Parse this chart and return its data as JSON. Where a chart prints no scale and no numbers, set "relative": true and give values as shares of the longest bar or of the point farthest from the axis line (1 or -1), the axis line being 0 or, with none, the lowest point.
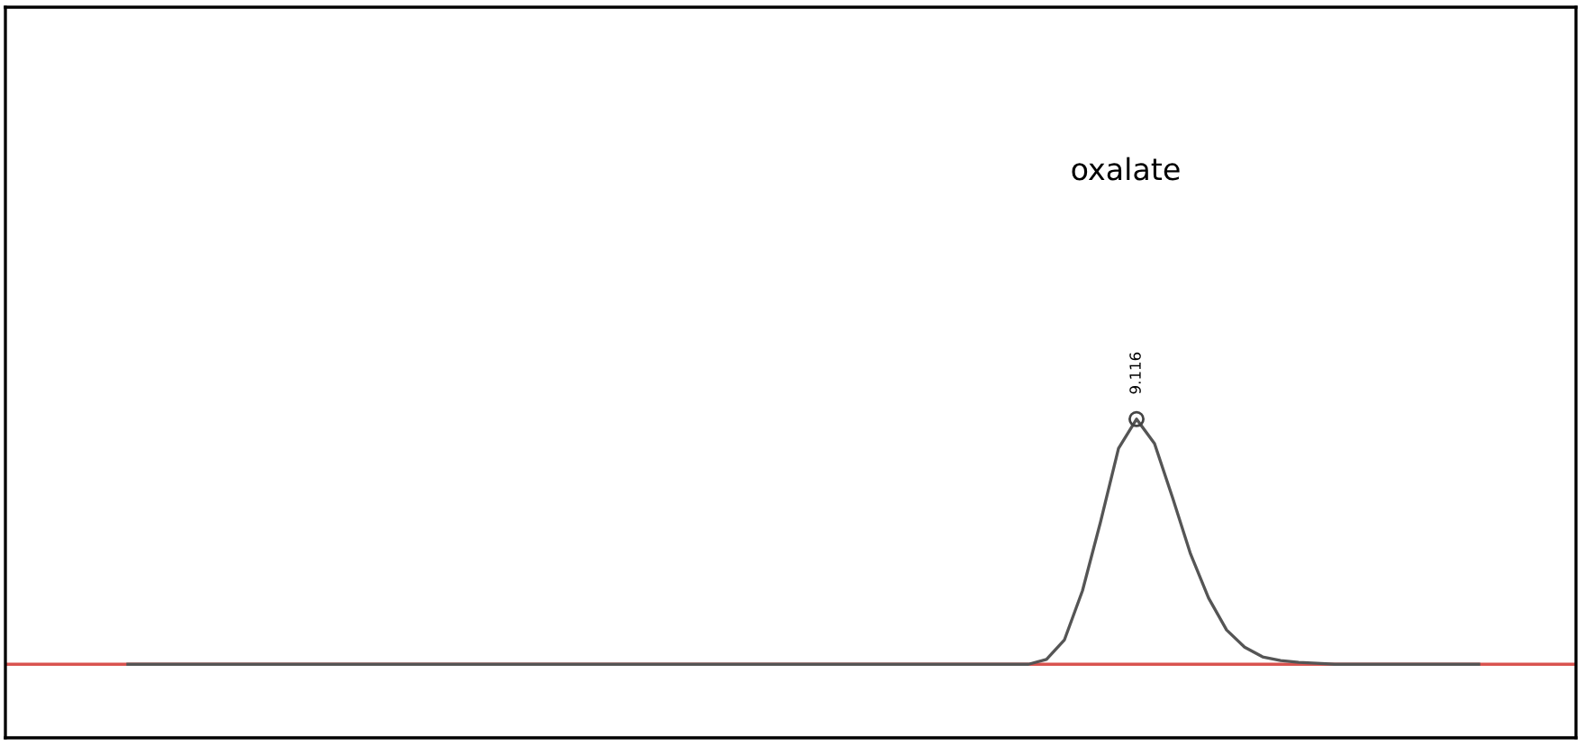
{
  "chart_data": {
    "type": "line",
    "relative": true,
    "annotations": [
      "oxalate",
      "9.116"
    ],
    "grid": false,
    "categories": [
      null,
      null,
      null,
      null,
      null,
      null,
      null,
      null,
      null,
      null,
      null,
      null,
      null,
      null,
      null,
      null,
      null,
      null,
      null,
      null,
      null,
      null,
      null,
      null,
      null,
      null,
      null,
      null,
      null,
      null,
      null,
      null,
      null,
      null,
      null,
      null,
      null,
      null,
      null,
      null,
      null,
      null,
      null,
      null,
      null,
      null,
      null,
      null,
      null,
      null,
      null,
      null,
      null,
      null,
      null,
      null,
      null,
      null,
      null,
      null,
      null,
      null,
      null,
      null,
      null,
      null,
      null,
      null,
      null,
      null,
      null,
      null,
      null,
      null,
      null,
      null
    ],
    "ref_lines": [
      {
        "axis": "y",
        "value": 0,
        "color": "#d9534f"
      }
    ],
    "series": [
      {
        "color": "#555555",
        "values": [
          0,
          0,
          0,
          0,
          0,
          0,
          0,
          0,
          0,
          0,
          0,
          0,
          0,
          0,
          0,
          0,
          0,
          0,
          0,
          0,
          0,
          0,
          0,
          0,
          0,
          0,
          0,
          0,
          0,
          0,
          0,
          0,
          0,
          0,
          0,
          0,
          0,
          0,
          0,
          0,
          0,
          0,
          0,
          0,
          0,
          0,
          0,
          0,
          0,
          0,
          0,
          0.02,
          0.1,
          0.3,
          0.58,
          0.88,
          1.0,
          0.9,
          0.68,
          0.45,
          0.27,
          0.14,
          0.07,
          0.03,
          0.015,
          0.008,
          0.004,
          0,
          0,
          0,
          0,
          0,
          0,
          0,
          0,
          0
        ]
      }
    ]
  }
}
